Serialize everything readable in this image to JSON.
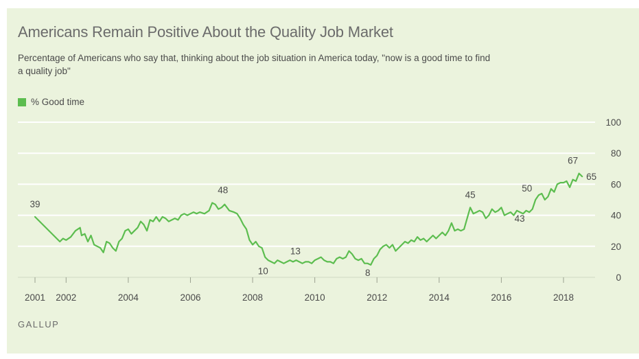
{
  "title": "Americans Remain Positive About the Quality Job Market",
  "subtitle": "Percentage of Americans who say that, thinking about the job situation in America today, \"now is a good time to find a quality job\"",
  "source": "GALLUP",
  "colors": {
    "background": "#ebf3dd",
    "line": "#5cbd4f",
    "gridline": "#ffffff",
    "text": "#6b6b6b"
  },
  "chart_data": {
    "type": "line",
    "title": "Americans Remain Positive About the Quality Job Market",
    "xlabel": "",
    "ylabel": "",
    "ylim": [
      0,
      100
    ],
    "yticks": [
      0,
      20,
      40,
      60,
      80,
      100
    ],
    "xlim": [
      2000.8,
      2019.0
    ],
    "xticks": [
      2001,
      2002,
      2004,
      2006,
      2008,
      2010,
      2012,
      2014,
      2016,
      2018
    ],
    "grid": true,
    "legend": "top-left",
    "series": [
      {
        "name": "% Good time",
        "color": "#5cbd4f",
        "x": [
          2001.0,
          2001.8,
          2001.9,
          2002.0,
          2002.15,
          2002.3,
          2002.45,
          2002.5,
          2002.6,
          2002.7,
          2002.8,
          2002.9,
          2003.0,
          2003.1,
          2003.2,
          2003.3,
          2003.4,
          2003.5,
          2003.6,
          2003.7,
          2003.8,
          2003.9,
          2004.0,
          2004.1,
          2004.2,
          2004.3,
          2004.4,
          2004.5,
          2004.6,
          2004.7,
          2004.8,
          2004.9,
          2005.0,
          2005.1,
          2005.2,
          2005.3,
          2005.4,
          2005.5,
          2005.6,
          2005.7,
          2005.8,
          2005.9,
          2006.0,
          2006.1,
          2006.2,
          2006.3,
          2006.45,
          2006.6,
          2006.7,
          2006.8,
          2006.9,
          2007.0,
          2007.1,
          2007.25,
          2007.4,
          2007.5,
          2007.6,
          2007.7,
          2007.8,
          2007.9,
          2008.0,
          2008.1,
          2008.2,
          2008.3,
          2008.4,
          2008.5,
          2008.6,
          2008.7,
          2008.8,
          2008.9,
          2009.0,
          2009.1,
          2009.2,
          2009.3,
          2009.4,
          2009.5,
          2009.6,
          2009.7,
          2009.8,
          2009.9,
          2010.0,
          2010.1,
          2010.2,
          2010.3,
          2010.4,
          2010.5,
          2010.6,
          2010.7,
          2010.8,
          2010.9,
          2011.0,
          2011.1,
          2011.2,
          2011.3,
          2011.4,
          2011.5,
          2011.6,
          2011.7,
          2011.8,
          2011.9,
          2012.0,
          2012.1,
          2012.2,
          2012.3,
          2012.4,
          2012.5,
          2012.6,
          2012.7,
          2012.8,
          2012.9,
          2013.0,
          2013.1,
          2013.2,
          2013.3,
          2013.4,
          2013.5,
          2013.6,
          2013.7,
          2013.8,
          2013.9,
          2014.0,
          2014.1,
          2014.2,
          2014.3,
          2014.4,
          2014.5,
          2014.6,
          2014.7,
          2014.8,
          2014.9,
          2015.0,
          2015.1,
          2015.2,
          2015.3,
          2015.4,
          2015.5,
          2015.6,
          2015.7,
          2015.8,
          2015.9,
          2016.0,
          2016.1,
          2016.2,
          2016.3,
          2016.4,
          2016.5,
          2016.6,
          2016.7,
          2016.8,
          2016.9,
          2017.0,
          2017.1,
          2017.2,
          2017.3,
          2017.4,
          2017.5,
          2017.6,
          2017.7,
          2017.8,
          2017.9,
          2018.0,
          2018.1,
          2018.2,
          2018.3,
          2018.4,
          2018.5,
          2018.6
        ],
        "values": [
          39,
          23,
          25,
          24,
          26,
          30,
          32,
          27,
          28,
          23,
          27,
          21,
          20,
          19,
          16,
          23,
          22,
          19,
          17,
          23,
          25,
          30,
          31,
          28,
          30,
          32,
          36,
          34,
          30,
          37,
          36,
          39,
          36,
          39,
          38,
          36,
          37,
          38,
          37,
          40,
          41,
          40,
          41,
          42,
          41,
          42,
          41,
          43,
          48,
          47,
          44,
          45,
          47,
          43,
          42,
          41,
          38,
          34,
          31,
          24,
          21,
          23,
          20,
          19,
          13,
          11,
          10,
          9,
          11,
          10,
          9,
          10,
          11,
          10,
          11,
          10,
          9,
          10,
          10,
          9,
          11,
          12,
          13,
          11,
          10,
          10,
          9,
          12,
          13,
          12,
          13,
          17,
          15,
          12,
          11,
          12,
          9,
          9,
          8,
          12,
          14,
          18,
          20,
          21,
          19,
          21,
          17,
          19,
          21,
          23,
          22,
          24,
          23,
          26,
          24,
          25,
          23,
          25,
          27,
          25,
          27,
          29,
          27,
          30,
          35,
          30,
          31,
          30,
          31,
          38,
          45,
          41,
          42,
          43,
          42,
          38,
          40,
          44,
          42,
          43,
          45,
          40,
          41,
          42,
          40,
          43,
          42,
          41,
          43,
          42,
          44,
          50,
          53,
          54,
          50,
          52,
          57,
          55,
          60,
          61,
          61,
          62,
          58,
          63,
          62,
          67,
          65
        ]
      }
    ],
    "annotations": [
      {
        "label": "39",
        "x": 2001.0,
        "y": 39
      },
      {
        "label": "48",
        "x": 2007.0,
        "y": 48
      },
      {
        "label": "13",
        "x": 2008.9,
        "y": 13
      },
      {
        "label": "10",
        "x": 2008.6,
        "y": 10
      },
      {
        "label": "8",
        "x": 2011.9,
        "y": 8
      },
      {
        "label": "45",
        "x": 2015.0,
        "y": 45
      },
      {
        "label": "43",
        "x": 2016.9,
        "y": 43
      },
      {
        "label": "50",
        "x": 2017.0,
        "y": 50
      },
      {
        "label": "67",
        "x": 2018.3,
        "y": 67
      },
      {
        "label": "65",
        "x": 2018.6,
        "y": 65
      }
    ]
  }
}
